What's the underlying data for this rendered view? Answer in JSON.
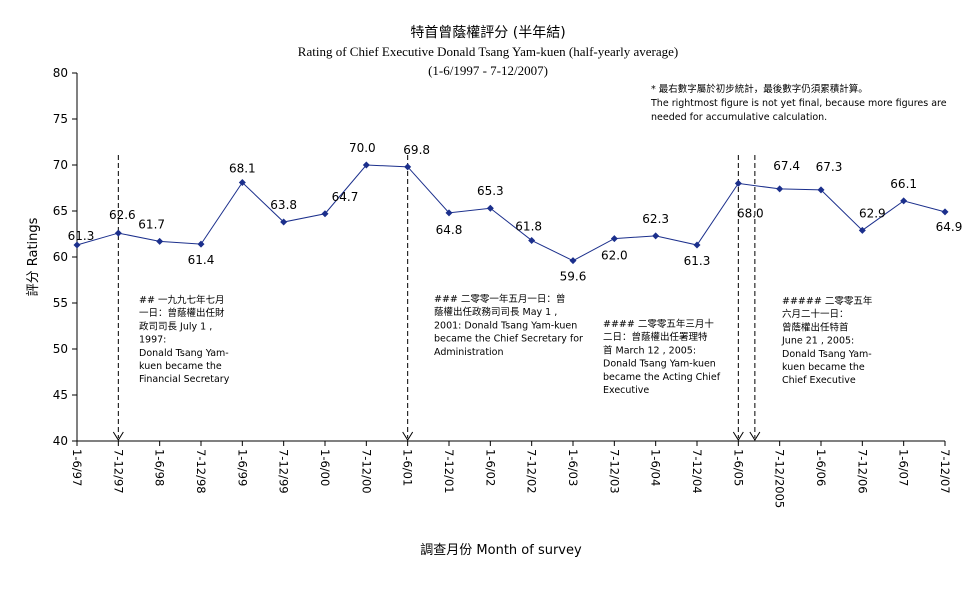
{
  "chart_data": {
    "type": "line",
    "title": "特首曾蔭權評分 (半年結)",
    "subtitle": "Rating of Chief Executive Donald Tsang Yam-kuen  (half-yearly average)",
    "period": "(1-6/1997 - 7-12/2007)",
    "xlabel": "調查月份 Month of survey",
    "ylabel": "評分 Ratings",
    "ylim": [
      40,
      80
    ],
    "yticks": [
      40,
      45,
      50,
      55,
      60,
      65,
      70,
      75,
      80
    ],
    "grid": false,
    "categories": [
      "1-6/97",
      "7-12/97",
      "1-6/98",
      "7-12/98",
      "1-6/99",
      "7-12/99",
      "1-6/00",
      "7-12/00",
      "1-6/01",
      "7-12/01",
      "1-6/02",
      "7-12/02",
      "1-6/03",
      "7-12/03",
      "1-6/04",
      "7-12/04",
      "1-6/05",
      "7-12/2005",
      "1-6/06",
      "7-12/06",
      "1-6/07",
      "7-12/07"
    ],
    "category_tick_labels": [
      {
        "index": 0,
        "text": "1-6/97"
      },
      {
        "index": 1,
        "text": "7-12/97"
      },
      {
        "index": 2,
        "text": "1-6/98"
      },
      {
        "index": 3,
        "text": "7-12/98"
      },
      {
        "index": 4,
        "text": "1-6/99"
      },
      {
        "index": 5,
        "text": "7-12/99"
      },
      {
        "index": 6,
        "text": "1-6/00"
      },
      {
        "index": 7,
        "text": "7-12/00"
      },
      {
        "index": 8,
        "text": "1-6/01"
      },
      {
        "index": 9,
        "text": "7-12/01"
      },
      {
        "index": 10,
        "text": "1-6/02"
      },
      {
        "index": 11,
        "text": "7-12/02"
      },
      {
        "index": 12,
        "text": "1-6/03"
      },
      {
        "index": 13,
        "text": "7-12/03"
      },
      {
        "index": 14,
        "text": "1-6/04"
      },
      {
        "index": 15,
        "text": "7-12/04"
      },
      {
        "index": 16,
        "text": "1-6/05"
      },
      {
        "index": 17,
        "text": "7-12/2005"
      },
      {
        "index": 18,
        "text": "1-6/06"
      },
      {
        "index": 19,
        "text": "7-12/06"
      },
      {
        "index": 20,
        "text": "1-6/07"
      },
      {
        "index": 21,
        "text": "7-12/07"
      }
    ],
    "series": [
      {
        "color": "#1b2f8c",
        "values": [
          61.3,
          62.6,
          61.7,
          61.4,
          68.1,
          63.8,
          64.7,
          70.0,
          69.8,
          64.8,
          65.3,
          61.8,
          59.6,
          62.0,
          62.3,
          61.3,
          68.0,
          67.4,
          67.3,
          62.9,
          66.1,
          64.9
        ]
      }
    ],
    "data_labels": [
      "61.3",
      "62.6",
      "61.7",
      "61.4",
      "68.1",
      "63.8",
      "64.7",
      "70.0",
      "69.8",
      "64.8",
      "65.3",
      "61.8",
      "59.6",
      "62.0",
      "62.3",
      "61.3",
      "68.0",
      "67.4",
      "67.3",
      "62.9",
      "66.1",
      "64.9"
    ],
    "note": {
      "lines": [
        "* 最右數字屬於初步統計，最後數字仍須累積計算。",
        "The rightmost figure is not yet final, because more figures are",
        "needed for accumulative calculation."
      ]
    },
    "event_markers": [
      {
        "at": 1,
        "lines": [
          "## 一九九七年七月",
          "一日：曾蔭權出任財",
          "政司司長 July 1 ,",
          "1997:",
          "Donald Tsang Yam-",
          "kuen became the",
          "Financial Secretary"
        ]
      },
      {
        "at": 8,
        "lines": [
          "### 二零零一年五月一日：曾",
          "蔭權出任政務司司長 May 1 ,",
          "2001: Donald Tsang Yam-kuen",
          "became the Chief Secretary for",
          "Administration"
        ]
      },
      {
        "at": 16,
        "lines": [
          "#### 二零零五年三月十",
          "二日：曾蔭權出任署理特",
          "首 March 12 , 2005:",
          "Donald Tsang Yam-kuen",
          "became the Acting Chief",
          "Executive"
        ]
      },
      {
        "at": 16.4,
        "lines": [
          "##### 二零零五年",
          "六月二十一日：",
          "曾蔭權出任特首",
          "June 21 , 2005:",
          "Donald Tsang Yam-",
          "kuen became the",
          "Chief Executive"
        ]
      }
    ]
  }
}
